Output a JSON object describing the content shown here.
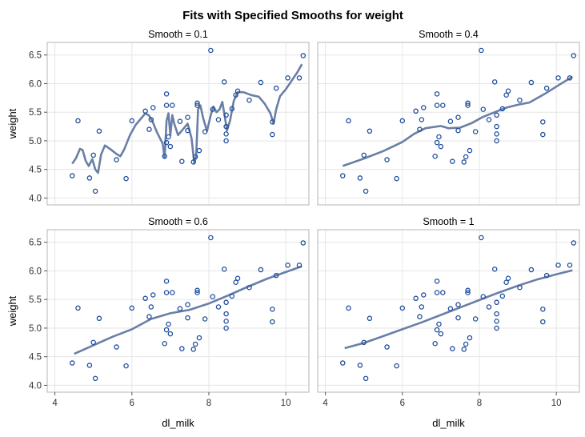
{
  "chart_data": {
    "type": "scatter",
    "title": "Fits with Specified Smooths for weight",
    "xlabel": "dl_milk",
    "ylabel": "weight",
    "xlim": [
      3.8,
      10.6
    ],
    "ylim": [
      3.88,
      6.72
    ],
    "xticks": [
      "4",
      "6",
      "8",
      "10"
    ],
    "yticks": [
      "4.0",
      "4.5",
      "5.0",
      "5.5",
      "6.0",
      "6.5"
    ],
    "grid": true,
    "colors": {
      "point": "#1f4e9c",
      "line": "#6a7fa6",
      "grid": "#e6e6e6",
      "frame": "#b4b4b4"
    },
    "points": [
      [
        4.45,
        4.39
      ],
      [
        4.6,
        5.35
      ],
      [
        4.9,
        4.35
      ],
      [
        5.0,
        4.75
      ],
      [
        5.05,
        4.12
      ],
      [
        5.15,
        5.17
      ],
      [
        5.6,
        4.67
      ],
      [
        5.85,
        4.34
      ],
      [
        6.0,
        5.35
      ],
      [
        6.35,
        5.52
      ],
      [
        6.45,
        5.2
      ],
      [
        6.5,
        5.37
      ],
      [
        6.55,
        5.58
      ],
      [
        6.85,
        4.73
      ],
      [
        6.9,
        4.97
      ],
      [
        6.9,
        5.62
      ],
      [
        6.9,
        5.82
      ],
      [
        6.95,
        5.07
      ],
      [
        7.0,
        4.9
      ],
      [
        7.05,
        5.62
      ],
      [
        7.25,
        5.34
      ],
      [
        7.3,
        4.64
      ],
      [
        7.45,
        5.41
      ],
      [
        7.45,
        5.18
      ],
      [
        7.6,
        4.63
      ],
      [
        7.65,
        4.72
      ],
      [
        7.7,
        5.62
      ],
      [
        7.7,
        5.66
      ],
      [
        7.75,
        4.83
      ],
      [
        7.9,
        5.16
      ],
      [
        8.05,
        6.58
      ],
      [
        8.1,
        5.55
      ],
      [
        8.25,
        5.37
      ],
      [
        8.4,
        6.03
      ],
      [
        8.45,
        5.0
      ],
      [
        8.45,
        5.12
      ],
      [
        8.45,
        5.25
      ],
      [
        8.45,
        5.45
      ],
      [
        8.6,
        5.56
      ],
      [
        8.7,
        5.8
      ],
      [
        8.75,
        5.87
      ],
      [
        9.05,
        5.71
      ],
      [
        9.35,
        6.02
      ],
      [
        9.65,
        5.33
      ],
      [
        9.65,
        5.11
      ],
      [
        9.75,
        5.92
      ],
      [
        10.05,
        6.1
      ],
      [
        10.35,
        6.1
      ],
      [
        10.45,
        6.49
      ]
    ],
    "panels": [
      {
        "title": "Smooth = 0.1",
        "smooth": 0.1,
        "fit": [
          [
            4.45,
            4.6
          ],
          [
            4.55,
            4.7
          ],
          [
            4.65,
            4.86
          ],
          [
            4.72,
            4.84
          ],
          [
            4.8,
            4.65
          ],
          [
            4.88,
            4.56
          ],
          [
            4.97,
            4.68
          ],
          [
            5.05,
            4.5
          ],
          [
            5.12,
            4.44
          ],
          [
            5.2,
            4.76
          ],
          [
            5.3,
            4.92
          ],
          [
            5.45,
            4.85
          ],
          [
            5.6,
            4.77
          ],
          [
            5.7,
            4.73
          ],
          [
            5.8,
            4.85
          ],
          [
            5.95,
            5.1
          ],
          [
            6.1,
            5.28
          ],
          [
            6.25,
            5.4
          ],
          [
            6.35,
            5.48
          ],
          [
            6.45,
            5.44
          ],
          [
            6.55,
            5.32
          ],
          [
            6.65,
            5.15
          ],
          [
            6.8,
            4.95
          ],
          [
            6.85,
            4.7
          ],
          [
            6.9,
            5.35
          ],
          [
            6.95,
            5.48
          ],
          [
            7.0,
            5.1
          ],
          [
            7.05,
            5.45
          ],
          [
            7.1,
            5.3
          ],
          [
            7.2,
            5.1
          ],
          [
            7.35,
            5.22
          ],
          [
            7.45,
            5.3
          ],
          [
            7.55,
            5.05
          ],
          [
            7.62,
            4.62
          ],
          [
            7.67,
            4.72
          ],
          [
            7.72,
            5.55
          ],
          [
            7.78,
            5.62
          ],
          [
            7.85,
            5.4
          ],
          [
            7.95,
            5.17
          ],
          [
            8.05,
            5.45
          ],
          [
            8.12,
            5.6
          ],
          [
            8.2,
            5.5
          ],
          [
            8.28,
            5.55
          ],
          [
            8.35,
            5.68
          ],
          [
            8.42,
            5.4
          ],
          [
            8.47,
            5.18
          ],
          [
            8.55,
            5.35
          ],
          [
            8.65,
            5.7
          ],
          [
            8.75,
            5.85
          ],
          [
            8.9,
            5.85
          ],
          [
            9.1,
            5.8
          ],
          [
            9.3,
            5.77
          ],
          [
            9.45,
            5.65
          ],
          [
            9.6,
            5.48
          ],
          [
            9.68,
            5.3
          ],
          [
            9.75,
            5.55
          ],
          [
            9.85,
            5.78
          ],
          [
            10.0,
            5.9
          ],
          [
            10.15,
            6.05
          ],
          [
            10.3,
            6.2
          ],
          [
            10.42,
            6.34
          ]
        ]
      },
      {
        "title": "Smooth = 0.4",
        "smooth": 0.4,
        "fit": [
          [
            4.45,
            4.56
          ],
          [
            5.0,
            4.69
          ],
          [
            5.5,
            4.82
          ],
          [
            6.0,
            4.98
          ],
          [
            6.3,
            5.12
          ],
          [
            6.6,
            5.22
          ],
          [
            7.0,
            5.26
          ],
          [
            7.2,
            5.22
          ],
          [
            7.5,
            5.23
          ],
          [
            7.8,
            5.31
          ],
          [
            8.1,
            5.42
          ],
          [
            8.4,
            5.5
          ],
          [
            8.7,
            5.58
          ],
          [
            9.0,
            5.63
          ],
          [
            9.3,
            5.67
          ],
          [
            9.7,
            5.82
          ],
          [
            10.1,
            5.99
          ],
          [
            10.42,
            6.12
          ]
        ]
      },
      {
        "title": "Smooth = 0.6",
        "smooth": 0.6,
        "fit": [
          [
            4.5,
            4.55
          ],
          [
            5.0,
            4.7
          ],
          [
            5.5,
            4.85
          ],
          [
            6.0,
            4.98
          ],
          [
            6.5,
            5.16
          ],
          [
            7.0,
            5.26
          ],
          [
            7.5,
            5.32
          ],
          [
            8.0,
            5.43
          ],
          [
            8.5,
            5.57
          ],
          [
            9.0,
            5.72
          ],
          [
            9.5,
            5.86
          ],
          [
            10.0,
            5.98
          ],
          [
            10.42,
            6.08
          ]
        ]
      },
      {
        "title": "Smooth = 1",
        "smooth": 1,
        "fit": [
          [
            4.5,
            4.65
          ],
          [
            5.0,
            4.74
          ],
          [
            5.5,
            4.86
          ],
          [
            6.0,
            4.98
          ],
          [
            6.5,
            5.1
          ],
          [
            7.0,
            5.23
          ],
          [
            7.5,
            5.36
          ],
          [
            8.0,
            5.49
          ],
          [
            8.5,
            5.62
          ],
          [
            9.0,
            5.74
          ],
          [
            9.5,
            5.85
          ],
          [
            10.0,
            5.94
          ],
          [
            10.42,
            6.01
          ]
        ]
      }
    ]
  }
}
